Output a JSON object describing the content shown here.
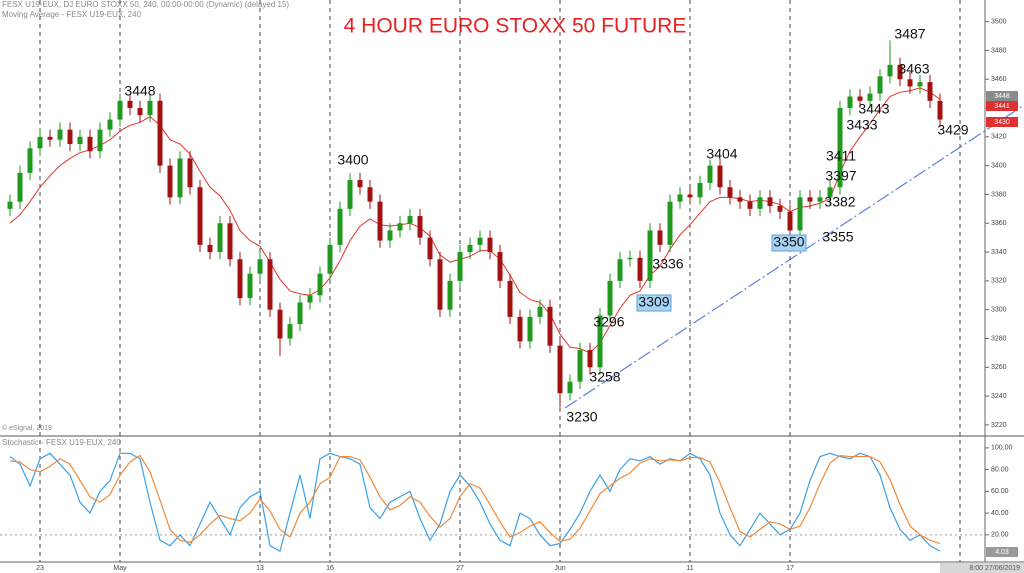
{
  "chart_data": {
    "type": "candlestick",
    "title": "4 HOUR  EURO STOXX 50 FUTURE",
    "header": [
      "FESX U19-EUX, DJ EURO STOXX 50, 240, 00:00-00:00 (Dynamic) (delayed 15)",
      "Moving Average - FESX U19-EUX, 240"
    ],
    "copyright": "© eSignal, 2019",
    "timestamp": "8:00 27/06/2019",
    "up_color": "#1f9a1f",
    "down_color": "#a31212",
    "categories": [
      null,
      null,
      null,
      "23",
      null,
      null,
      null,
      null,
      null,
      null,
      null,
      "May",
      null,
      null,
      null,
      null,
      null,
      null,
      null,
      null,
      null,
      null,
      null,
      null,
      null,
      "13",
      null,
      null,
      null,
      null,
      null,
      null,
      "16",
      null,
      null,
      null,
      null,
      null,
      null,
      null,
      null,
      null,
      null,
      null,
      null,
      "27",
      null,
      null,
      null,
      null,
      null,
      null,
      null,
      null,
      null,
      "Jun",
      null,
      null,
      null,
      null,
      null,
      null,
      null,
      null,
      null,
      null,
      null,
      null,
      "11",
      null,
      null,
      null,
      null,
      null,
      null,
      null,
      null,
      null,
      "17",
      null,
      null,
      null,
      null,
      null,
      null,
      null,
      null,
      null,
      null,
      null,
      null,
      null,
      null,
      null
    ],
    "open": [
      3370,
      3375,
      3395,
      3412,
      3420,
      3418,
      3425,
      3415,
      3420,
      3410,
      3425,
      3432,
      3445,
      3440,
      3435,
      3445,
      3400,
      3378,
      3405,
      3385,
      3345,
      3340,
      3360,
      3335,
      3308,
      3325,
      3335,
      3300,
      3280,
      3290,
      3305,
      3310,
      3325,
      3345,
      3370,
      3390,
      3385,
      3375,
      3348,
      3355,
      3360,
      3365,
      3350,
      3335,
      3300,
      3320,
      3340,
      3345,
      3350,
      3340,
      3320,
      3295,
      3278,
      3295,
      3302,
      3275,
      3242,
      3250,
      3272,
      3260,
      3296,
      3320,
      3335,
      3336,
      3320,
      3355,
      3345,
      3375,
      3380,
      3378,
      3388,
      3400,
      3385,
      3378,
      3375,
      3370,
      3378,
      3372,
      3368,
      3355,
      3378,
      3375,
      3378,
      3385,
      3440,
      3448,
      3445,
      3450,
      3462,
      3470,
      3460,
      3455,
      3458,
      3445
    ],
    "high": [
      3380,
      3400,
      3417,
      3425,
      3425,
      3430,
      3430,
      3425,
      3425,
      3430,
      3437,
      3450,
      3450,
      3445,
      3450,
      3450,
      3405,
      3410,
      3410,
      3390,
      3350,
      3365,
      3365,
      3340,
      3330,
      3340,
      3340,
      3305,
      3295,
      3310,
      3315,
      3330,
      3350,
      3375,
      3395,
      3395,
      3390,
      3380,
      3360,
      3365,
      3370,
      3370,
      3355,
      3340,
      3325,
      3345,
      3350,
      3355,
      3355,
      3345,
      3325,
      3300,
      3300,
      3307,
      3307,
      3280,
      3255,
      3277,
      3277,
      3301,
      3325,
      3340,
      3341,
      3341,
      3360,
      3360,
      3380,
      3385,
      3385,
      3393,
      3404,
      3405,
      3390,
      3383,
      3380,
      3383,
      3383,
      3377,
      3373,
      3383,
      3383,
      3383,
      3390,
      3445,
      3453,
      3453,
      3455,
      3467,
      3487,
      3475,
      3465,
      3463,
      3463,
      3450
    ],
    "low": [
      3365,
      3370,
      3390,
      3407,
      3413,
      3413,
      3410,
      3410,
      3405,
      3405,
      3420,
      3427,
      3435,
      3430,
      3430,
      3395,
      3373,
      3373,
      3380,
      3340,
      3335,
      3335,
      3330,
      3303,
      3303,
      3320,
      3295,
      3268,
      3275,
      3285,
      3300,
      3305,
      3320,
      3340,
      3365,
      3380,
      3370,
      3343,
      3343,
      3350,
      3355,
      3345,
      3330,
      3295,
      3295,
      3315,
      3335,
      3340,
      3335,
      3315,
      3290,
      3273,
      3273,
      3290,
      3270,
      3232,
      3237,
      3245,
      3255,
      3255,
      3291,
      3315,
      3330,
      3315,
      3315,
      3340,
      3340,
      3370,
      3373,
      3373,
      3383,
      3380,
      3373,
      3370,
      3365,
      3365,
      3367,
      3363,
      3350,
      3350,
      3370,
      3370,
      3373,
      3380,
      3435,
      3440,
      3440,
      3445,
      3457,
      3455,
      3450,
      3450,
      3440,
      3427
    ],
    "close": [
      3375,
      3395,
      3412,
      3420,
      3418,
      3425,
      3415,
      3420,
      3410,
      3425,
      3432,
      3445,
      3440,
      3435,
      3445,
      3400,
      3378,
      3405,
      3385,
      3345,
      3340,
      3360,
      3335,
      3308,
      3325,
      3335,
      3300,
      3280,
      3290,
      3305,
      3310,
      3325,
      3345,
      3370,
      3390,
      3385,
      3375,
      3348,
      3355,
      3360,
      3365,
      3350,
      3335,
      3300,
      3320,
      3340,
      3345,
      3350,
      3340,
      3320,
      3295,
      3278,
      3295,
      3302,
      3275,
      3242,
      3250,
      3272,
      3260,
      3296,
      3320,
      3335,
      3336,
      3320,
      3355,
      3345,
      3375,
      3380,
      3378,
      3388,
      3400,
      3385,
      3378,
      3375,
      3370,
      3378,
      3372,
      3368,
      3355,
      3378,
      3375,
      3378,
      3385,
      3440,
      3448,
      3445,
      3450,
      3462,
      3470,
      3460,
      3455,
      3458,
      3445,
      3432
    ],
    "moving_average": [
      3360,
      3366,
      3375,
      3385,
      3393,
      3400,
      3405,
      3409,
      3411,
      3414,
      3418,
      3424,
      3428,
      3430,
      3434,
      3428,
      3418,
      3415,
      3408,
      3396,
      3385,
      3379,
      3369,
      3355,
      3348,
      3344,
      3333,
      3321,
      3313,
      3311,
      3310,
      3314,
      3322,
      3334,
      3348,
      3358,
      3363,
      3359,
      3358,
      3359,
      3360,
      3357,
      3351,
      3338,
      3333,
      3335,
      3337,
      3341,
      3341,
      3335,
      3324,
      3312,
      3307,
      3305,
      3297,
      3283,
      3274,
      3273,
      3270,
      3277,
      3289,
      3301,
      3310,
      3313,
      3324,
      3330,
      3342,
      3352,
      3359,
      3367,
      3375,
      3378,
      3378,
      3377,
      3375,
      3376,
      3375,
      3373,
      3368,
      3371,
      3372,
      3374,
      3377,
      3395,
      3410,
      3420,
      3429,
      3439,
      3448,
      3451,
      3452,
      3454,
      3451,
      3446
    ],
    "ma_color": "#e8332a",
    "ylim": [
      3213,
      3515
    ],
    "yticks": [
      3220,
      3240,
      3260,
      3280,
      3300,
      3320,
      3340,
      3360,
      3380,
      3400,
      3420,
      3440,
      3460,
      3480,
      3500
    ],
    "price_tags": [
      {
        "text": "3448",
        "color": "#8a8a8a"
      },
      {
        "text": "3441",
        "color": "#e03030"
      },
      {
        "text": "3430",
        "color": "#e03030"
      }
    ],
    "annotations": [
      "3448",
      "3400",
      "3230",
      "3258",
      "3296",
      "3309",
      "3336",
      "3404",
      "3350",
      "3355",
      "3382",
      "3397",
      "3411",
      "3433",
      "3443",
      "3463",
      "3487",
      "3429"
    ],
    "stochastic": {
      "title": "Stochastic - FESX U19-EUX, 240",
      "ylim": [
        -5,
        110
      ],
      "yticks": [
        {
          "value": 20,
          "label": "20.00"
        },
        {
          "value": 40,
          "label": "40.00"
        },
        {
          "value": 60,
          "label": "60.00"
        },
        {
          "value": 80,
          "label": "80.00"
        },
        {
          "value": 100,
          "label": "100.00"
        }
      ],
      "last_tag": "4.03",
      "series": [
        {
          "color": "#3aa0e8",
          "values": [
            92,
            85,
            65,
            90,
            95,
            85,
            75,
            50,
            40,
            60,
            70,
            95,
            95,
            90,
            50,
            15,
            10,
            20,
            10,
            30,
            50,
            35,
            20,
            45,
            55,
            60,
            10,
            5,
            40,
            75,
            35,
            90,
            95,
            92,
            90,
            85,
            45,
            35,
            50,
            55,
            60,
            35,
            15,
            30,
            60,
            75,
            65,
            50,
            30,
            15,
            10,
            40,
            35,
            20,
            10,
            12,
            25,
            40,
            60,
            75,
            60,
            80,
            90,
            88,
            92,
            85,
            90,
            88,
            95,
            90,
            75,
            40,
            20,
            10,
            25,
            40,
            30,
            20,
            25,
            40,
            70,
            92,
            95,
            92,
            90,
            95,
            92,
            75,
            45,
            25,
            15,
            20,
            10,
            5
          ]
        },
        {
          "color": "#f08a3a",
          "values": [
            88,
            87,
            80,
            78,
            83,
            90,
            85,
            70,
            55,
            50,
            57,
            75,
            87,
            93,
            78,
            52,
            25,
            15,
            13,
            20,
            30,
            38,
            35,
            33,
            40,
            53,
            42,
            25,
            18,
            40,
            50,
            67,
            73,
            92,
            92,
            89,
            73,
            55,
            43,
            47,
            55,
            50,
            37,
            27,
            35,
            55,
            67,
            63,
            48,
            32,
            18,
            22,
            28,
            32,
            22,
            14,
            16,
            26,
            42,
            58,
            65,
            72,
            77,
            86,
            90,
            88,
            89,
            88,
            91,
            91,
            87,
            68,
            45,
            23,
            18,
            25,
            32,
            30,
            25,
            28,
            45,
            67,
            86,
            93,
            92,
            92,
            92,
            87,
            71,
            48,
            28,
            20,
            15,
            12
          ]
        }
      ]
    }
  }
}
